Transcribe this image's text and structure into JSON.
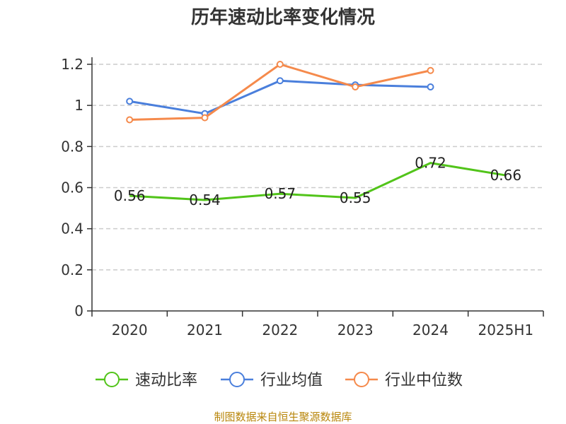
{
  "chart_data": {
    "type": "line",
    "title": "历年速动比率变化情况",
    "categories": [
      "2020",
      "2021",
      "2022",
      "2023",
      "2024",
      "2025H1"
    ],
    "ylim": [
      0,
      1.2
    ],
    "yticks": [
      "0",
      "0.2",
      "0.4",
      "0.6",
      "0.8",
      "1",
      "1.2"
    ],
    "grid": true,
    "legend_position": "bottom",
    "series": [
      {
        "name": "速动比率",
        "color": "#52c41a",
        "values": [
          0.56,
          0.54,
          0.57,
          0.55,
          0.72,
          0.66
        ],
        "labels": [
          "0.56",
          "0.54",
          "0.57",
          "0.55",
          "0.72",
          "0.66"
        ]
      },
      {
        "name": "行业均值",
        "color": "#4a7fdc",
        "values": [
          1.02,
          0.96,
          1.12,
          1.1,
          1.09,
          null
        ]
      },
      {
        "name": "行业中位数",
        "color": "#f58a4c",
        "values": [
          0.93,
          0.94,
          1.2,
          1.09,
          1.17,
          null
        ]
      }
    ]
  },
  "source": "制图数据来自恒生聚源数据库"
}
